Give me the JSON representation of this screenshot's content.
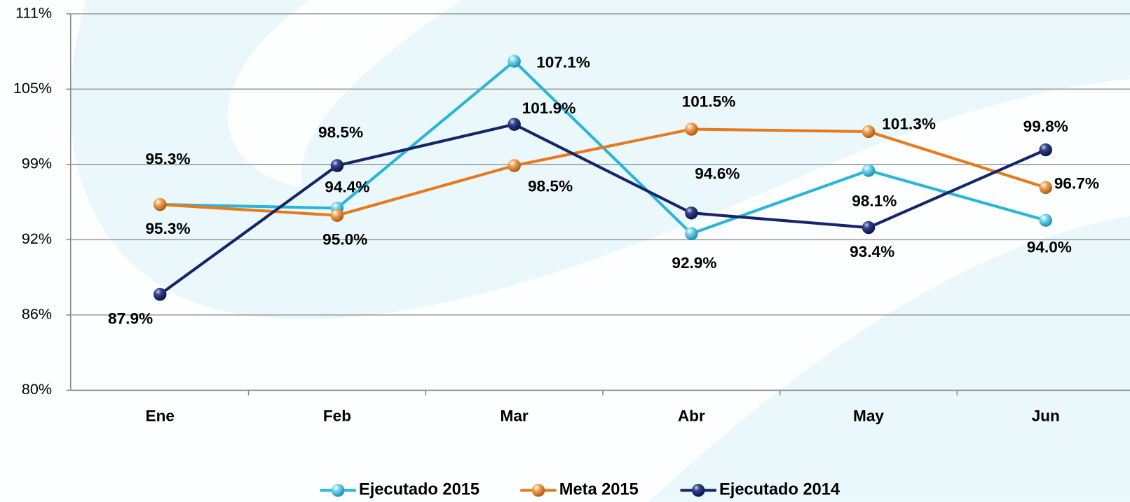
{
  "chart_data": {
    "type": "line",
    "categories": [
      "Ene",
      "Feb",
      "Mar",
      "Abr",
      "May",
      "Jun"
    ],
    "ylim": [
      80,
      111
    ],
    "yticks": [
      {
        "value": 80,
        "label": "80%"
      },
      {
        "value": 86.2,
        "label": "86%"
      },
      {
        "value": 92.4,
        "label": "92%"
      },
      {
        "value": 98.6,
        "label": "99%"
      },
      {
        "value": 104.8,
        "label": "105%"
      },
      {
        "value": 111,
        "label": "111%"
      }
    ],
    "grid": true,
    "legend": "bottom",
    "series": [
      {
        "name": "Ejecutado 2015",
        "color": "#2bb5d9",
        "values": [
          95.3,
          95.0,
          107.1,
          92.9,
          98.1,
          94.0
        ],
        "value_labels": [
          "95.3%",
          "95.0%",
          "107.1%",
          "92.9%",
          "98.1%",
          "94.0%"
        ]
      },
      {
        "name": "Meta 2015",
        "color": "#e57b1e",
        "values": [
          95.3,
          94.4,
          98.5,
          101.5,
          101.3,
          96.7
        ],
        "value_labels": [
          "95.3%",
          "94.4%",
          "98.5%",
          "101.5%",
          "101.3%",
          "96.7%"
        ]
      },
      {
        "name": "Ejecutado 2014",
        "color": "#16256a",
        "values": [
          87.9,
          98.5,
          101.9,
          94.6,
          93.4,
          99.8
        ],
        "value_labels": [
          "87.9%",
          "98.5%",
          "101.9%",
          "94.6%",
          "93.4%",
          "99.8%"
        ]
      }
    ]
  }
}
